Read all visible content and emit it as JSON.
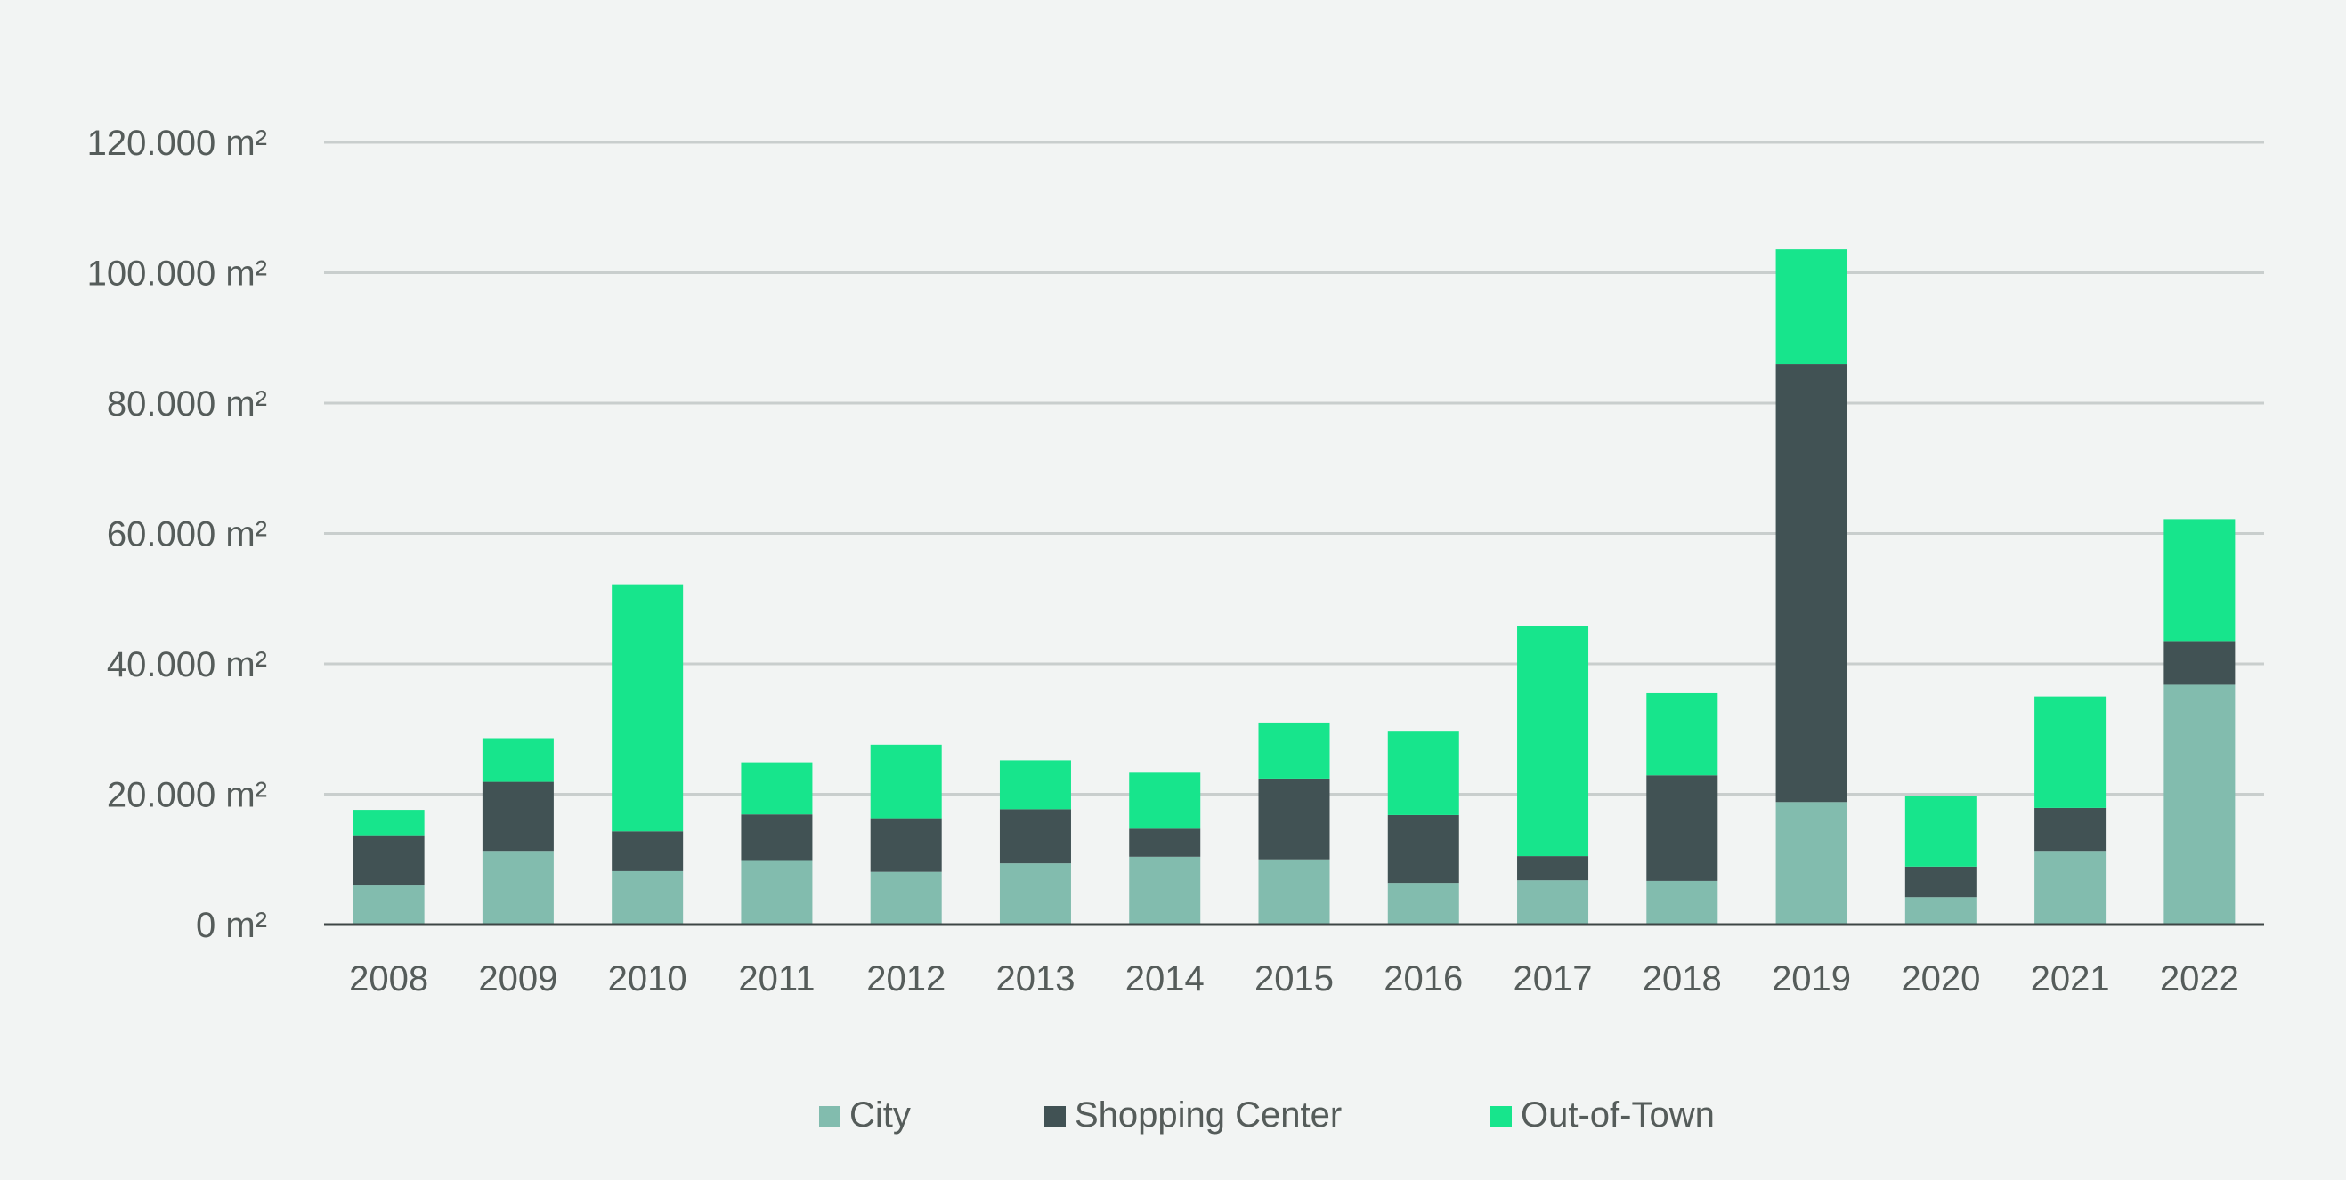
{
  "chart_data": {
    "type": "bar",
    "stacked": true,
    "categories": [
      "2008",
      "2009",
      "2010",
      "2011",
      "2012",
      "2013",
      "2014",
      "2015",
      "2016",
      "2017",
      "2018",
      "2019",
      "2020",
      "2021",
      "2022"
    ],
    "series": [
      {
        "name": "City",
        "color": "#82bcae",
        "values": [
          6000,
          11300,
          8200,
          9900,
          8100,
          9400,
          10400,
          10000,
          6400,
          6800,
          6700,
          18800,
          4200,
          11300,
          36800
        ]
      },
      {
        "name": "Shopping Center",
        "color": "#415254",
        "values": [
          7700,
          10600,
          6100,
          7000,
          8200,
          8300,
          4300,
          12400,
          10400,
          3700,
          16200,
          67200,
          4700,
          6600,
          6700
        ]
      },
      {
        "name": "Out-of-Town",
        "color": "#17e58c",
        "values": [
          3900,
          6700,
          37900,
          8000,
          11300,
          7500,
          8600,
          8600,
          12800,
          35300,
          12600,
          17600,
          10800,
          17100,
          18700
        ]
      }
    ],
    "ylim": [
      0,
      120000
    ],
    "yticks": [
      0,
      20000,
      40000,
      60000,
      80000,
      100000,
      120000
    ],
    "ytick_labels": [
      "0  m²",
      "20.000  m²",
      "40.000  m²",
      "60.000  m²",
      "80.000  m²",
      "100.000  m²",
      "120.000  m²"
    ],
    "grid": true,
    "legend_position": "bottom",
    "title": "",
    "xlabel": "",
    "ylabel": ""
  }
}
